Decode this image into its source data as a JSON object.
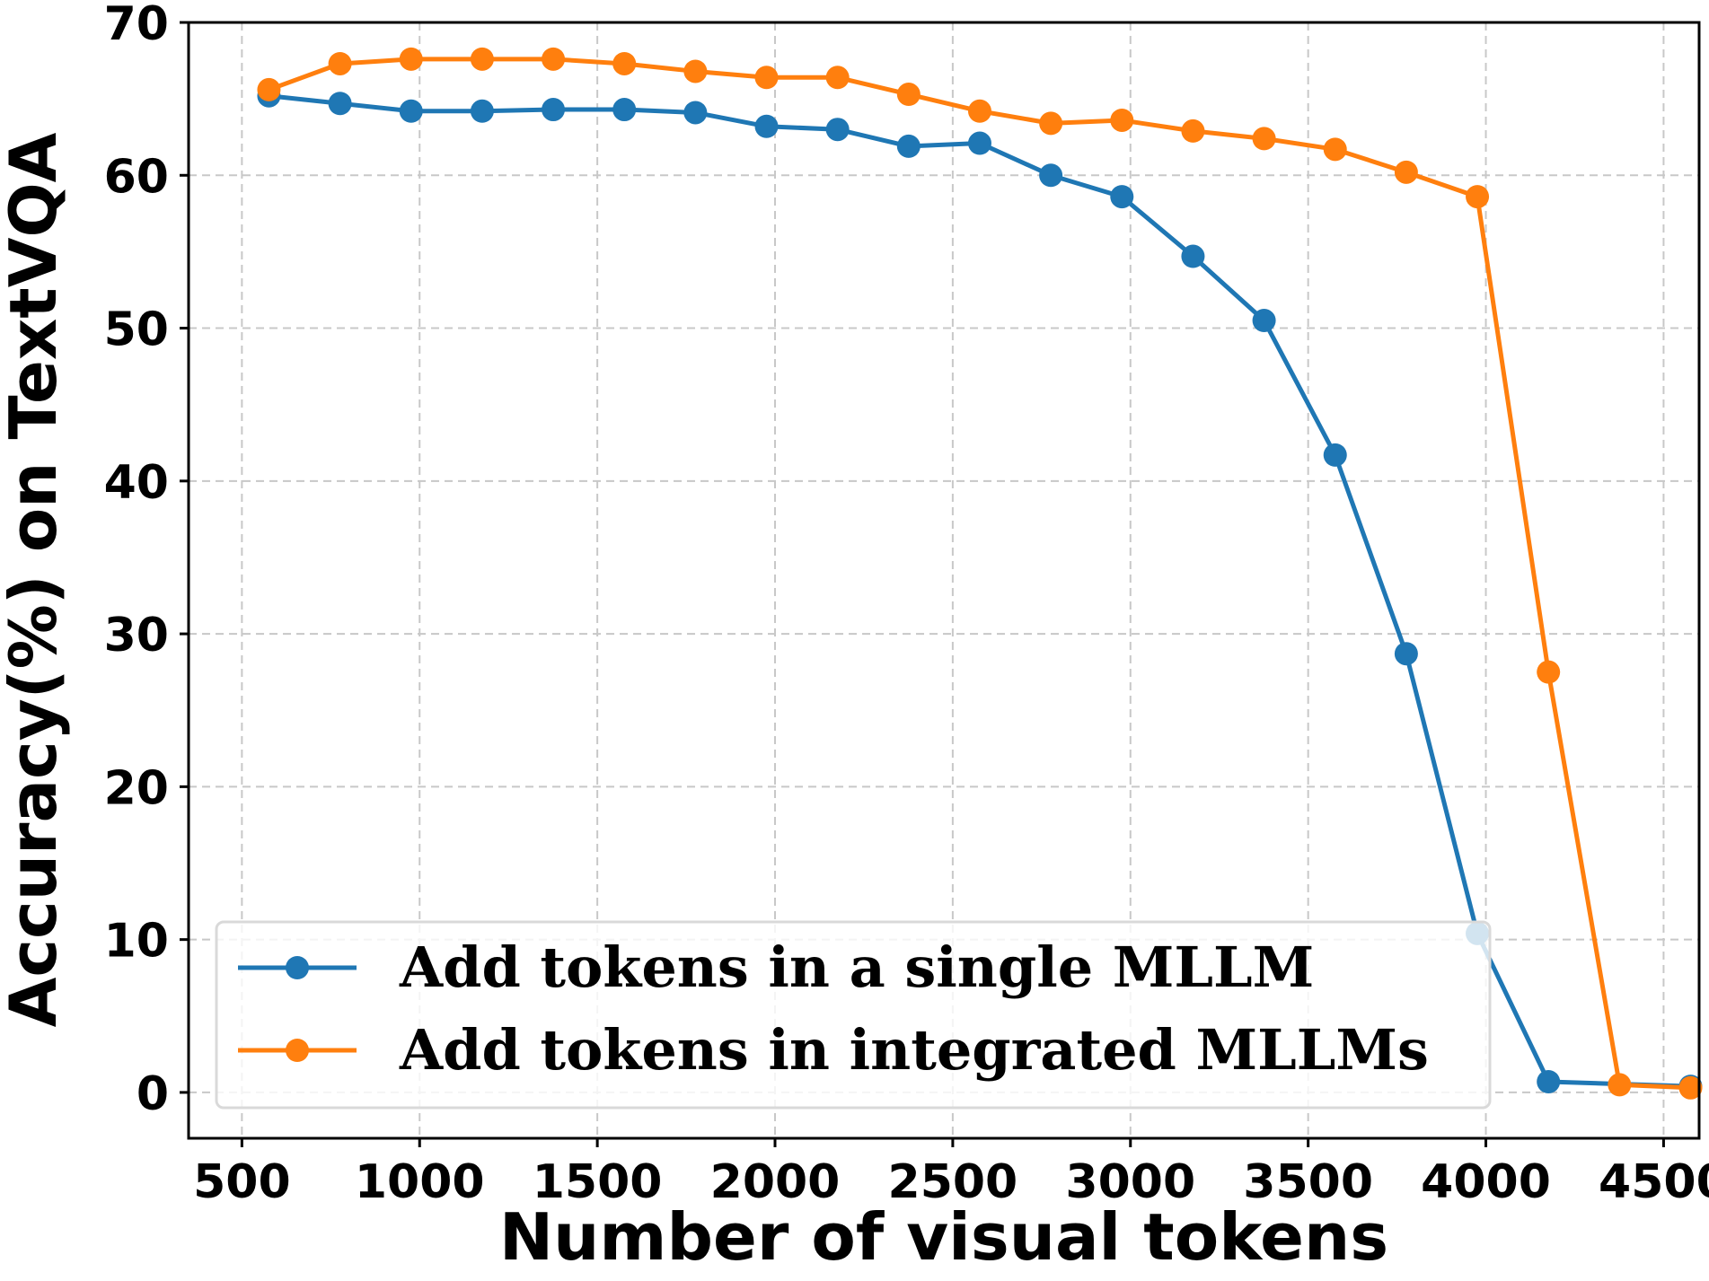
{
  "chart_data": {
    "type": "line",
    "title": "",
    "xlabel": "Number of visual tokens",
    "ylabel": "Accuracy(%) on TextVQA",
    "xlim": [
      350,
      4600
    ],
    "ylim": [
      -3,
      70
    ],
    "xticks": [
      500,
      1000,
      1500,
      2000,
      2500,
      3000,
      3500,
      4000,
      4500
    ],
    "xtick_labels": [
      "500",
      "1000",
      "1500",
      "2000",
      "2500",
      "3000",
      "3500",
      "4000",
      "4500"
    ],
    "yticks": [
      0,
      10,
      20,
      30,
      40,
      50,
      60,
      70
    ],
    "ytick_labels": [
      "0",
      "10",
      "20",
      "30",
      "40",
      "50",
      "60",
      "70"
    ],
    "grid": true,
    "legend_position": "lower-left",
    "x": [
      576,
      776,
      976,
      1176,
      1376,
      1576,
      1776,
      1976,
      2176,
      2376,
      2576,
      2776,
      2976,
      3176,
      3376,
      3576,
      3776,
      3976,
      4176,
      4376,
      4576
    ],
    "series": [
      {
        "name": "Add tokens in a single MLLM",
        "color": "#1f77b4",
        "x": [
          576,
          776,
          976,
          1176,
          1376,
          1576,
          1776,
          1976,
          2176,
          2376,
          2576,
          2776,
          2976,
          3176,
          3376,
          3576,
          3776,
          3976,
          4176,
          4576
        ],
        "values": [
          65.2,
          64.7,
          64.2,
          64.2,
          64.3,
          64.3,
          64.1,
          63.2,
          63.0,
          61.9,
          62.1,
          60.0,
          58.6,
          54.7,
          50.5,
          41.7,
          28.7,
          10.4,
          0.7,
          0.4
        ]
      },
      {
        "name": "Add tokens in integrated MLLMs",
        "color": "#ff7f0e",
        "x": [
          576,
          776,
          976,
          1176,
          1376,
          1576,
          1776,
          1976,
          2176,
          2376,
          2576,
          2776,
          2976,
          3176,
          3376,
          3576,
          3776,
          3976,
          4176,
          4376,
          4576
        ],
        "values": [
          65.6,
          67.3,
          67.6,
          67.6,
          67.6,
          67.3,
          66.8,
          66.4,
          66.4,
          65.3,
          64.2,
          63.4,
          63.6,
          62.9,
          62.4,
          61.7,
          60.2,
          58.6,
          27.5,
          0.5,
          0.3
        ]
      }
    ]
  }
}
